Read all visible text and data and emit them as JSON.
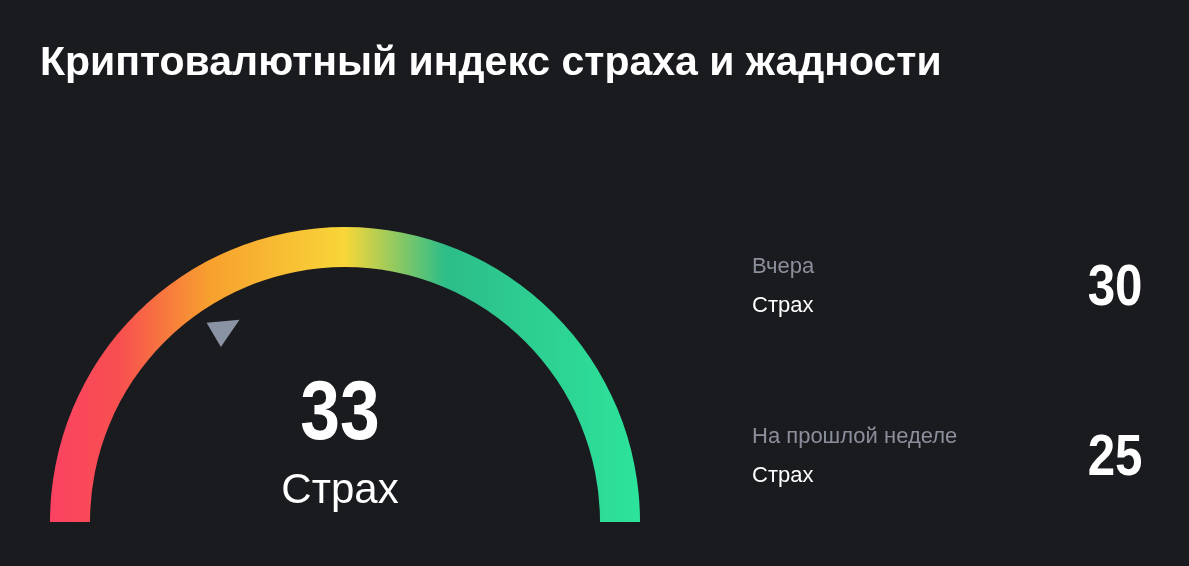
{
  "chart_data": {
    "type": "other",
    "title": "Криптовалютный индекс страха и жадности",
    "categories": [
      "Страх",
      "Страх",
      "Страх"
    ],
    "values": [
      33,
      30,
      25
    ],
    "annotations": [
      "Вчера",
      "На прошлой неделе"
    ],
    "data_labels": true
  }
}
